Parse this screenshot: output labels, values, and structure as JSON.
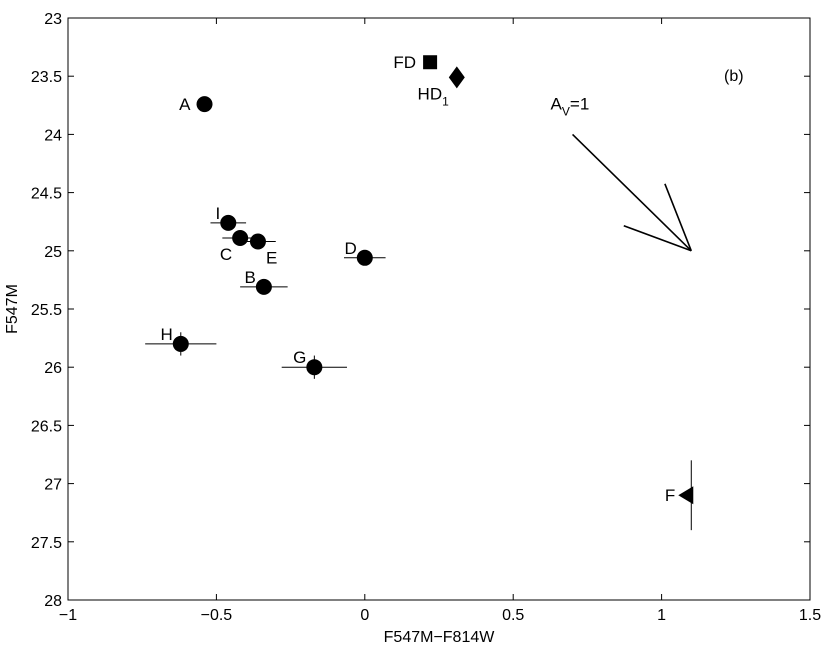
{
  "chart_data": {
    "type": "scatter",
    "xlabel": "F547M−F814W",
    "ylabel": "F547M",
    "xlim": [
      -1,
      1.5
    ],
    "ylim": [
      23,
      28
    ],
    "y_inverted": true,
    "x_ticks": [
      -1,
      -0.5,
      0,
      0.5,
      1,
      1.5
    ],
    "x_tick_labels": [
      "−1",
      "−0.5",
      "0",
      "0.5",
      "1",
      "1.5"
    ],
    "y_ticks": [
      23,
      23.5,
      24,
      24.5,
      25,
      25.5,
      26,
      26.5,
      27,
      27.5,
      28
    ],
    "y_tick_labels": [
      "23",
      "23.5",
      "24",
      "24.5",
      "25",
      "25.5",
      "26",
      "26.5",
      "27",
      "27.5",
      "28"
    ],
    "grid": false,
    "panel_label": "(b)",
    "points": [
      {
        "label": "A",
        "x": -0.54,
        "y": 23.74,
        "marker": "circle",
        "xerr": 0.02,
        "yerr": 0.02,
        "label_pos": "left"
      },
      {
        "label": "I",
        "x": -0.46,
        "y": 24.76,
        "marker": "circle",
        "xerr": 0.06,
        "yerr": 0.03,
        "label_pos": "upper-left"
      },
      {
        "label": "C",
        "x": -0.42,
        "y": 24.89,
        "marker": "circle",
        "xerr": 0.06,
        "yerr": 0.03,
        "label_pos": "lower-left"
      },
      {
        "label": "E",
        "x": -0.36,
        "y": 24.92,
        "marker": "circle",
        "xerr": 0.06,
        "yerr": 0.03,
        "label_pos": "lower-right"
      },
      {
        "label": "D",
        "x": 0.0,
        "y": 25.06,
        "marker": "circle",
        "xerr": 0.07,
        "yerr": 0.03,
        "label_pos": "upper-left"
      },
      {
        "label": "B",
        "x": -0.34,
        "y": 25.31,
        "marker": "circle",
        "xerr": 0.08,
        "yerr": 0.03,
        "label_pos": "upper-left"
      },
      {
        "label": "H",
        "x": -0.62,
        "y": 25.8,
        "marker": "circle",
        "xerr": 0.12,
        "yerr": 0.1,
        "label_pos": "upper-left"
      },
      {
        "label": "G",
        "x": -0.17,
        "y": 26.0,
        "marker": "circle",
        "xerr": 0.11,
        "yerr": 0.1,
        "label_pos": "upper-left"
      },
      {
        "label": "FD",
        "x": 0.22,
        "y": 23.38,
        "marker": "square",
        "xerr": 0,
        "yerr": 0,
        "label_pos": "left"
      },
      {
        "label": "HD",
        "label_sub": "1",
        "x": 0.31,
        "y": 23.51,
        "marker": "diamond",
        "xerr": 0,
        "yerr": 0,
        "label_pos": "lower-left"
      },
      {
        "label": "F",
        "x": 1.1,
        "y": 27.1,
        "marker": "triangle-left",
        "xerr": 0,
        "yerr": 0.3,
        "label_pos": "left"
      }
    ],
    "reddening_vector": {
      "label": "A",
      "label_sub": "V",
      "label_suffix": "=1",
      "start": [
        0.7,
        24.0
      ],
      "end": [
        1.1,
        25.0
      ]
    }
  }
}
